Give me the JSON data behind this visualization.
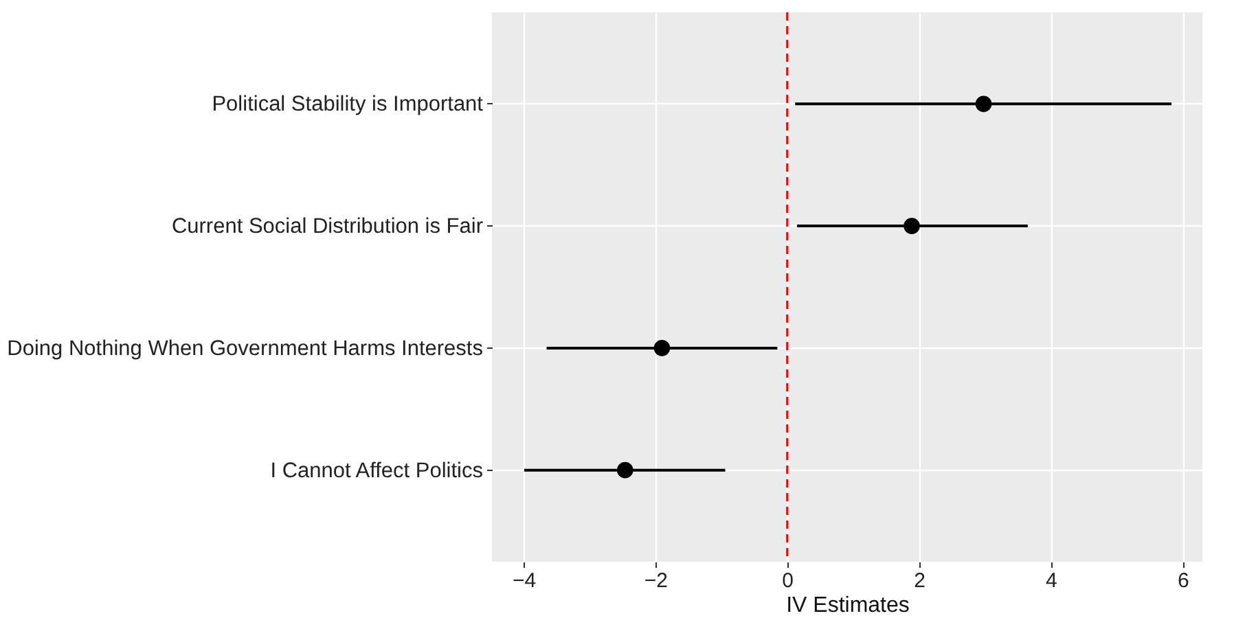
{
  "chart_data": {
    "type": "scatter",
    "orientation": "horizontal",
    "xlabel": "IV Estimates",
    "categories": [
      "Political Stability is Important",
      "Current Social Distribution is Fair",
      "Doing Nothing When Government Harms Interests",
      "I Cannot Affect Politics"
    ],
    "series": [
      {
        "color": "#000000",
        "values": [
          2.98,
          1.89,
          -1.9,
          -2.46
        ],
        "errors": [
          [
            0.12,
            5.83
          ],
          [
            0.15,
            3.65
          ],
          [
            -3.65,
            -0.15
          ],
          [
            -3.99,
            -0.94
          ]
        ]
      }
    ],
    "xlim": [
      -4.48,
      6.3
    ],
    "xticks": [
      -4,
      -2,
      0,
      2,
      4,
      6
    ],
    "grid": true,
    "marker": "circle",
    "ref_lines": [
      {
        "axis": "x",
        "value": 0,
        "color": "#ff0000",
        "line_style": "dashed"
      }
    ]
  }
}
